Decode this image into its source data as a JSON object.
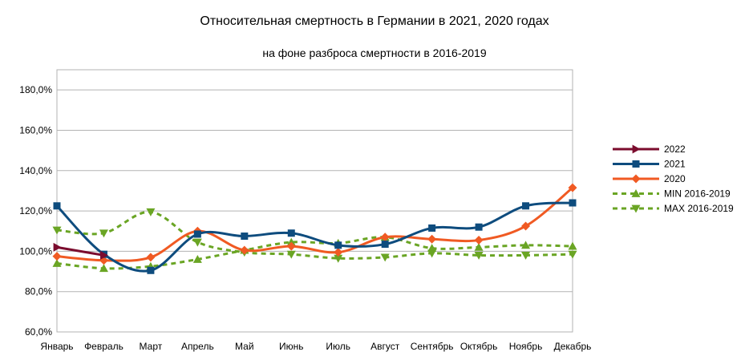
{
  "chart_data": {
    "type": "line",
    "title": "Относительная смертность в Германии в 2021, 2020 годах",
    "subtitle": "на фоне разброса смертности в 2016-2019",
    "categories": [
      "Январь",
      "Февраль",
      "Март",
      "Апрель",
      "Май",
      "Июнь",
      "Июль",
      "Август",
      "Сентябрь",
      "Октябрь",
      "Ноябрь",
      "Декабрь"
    ],
    "ylim": [
      60,
      190
    ],
    "yticks": [
      60,
      80,
      100,
      120,
      140,
      160,
      180
    ],
    "ytick_labels": [
      "60,0%",
      "80,0%",
      "100,0%",
      "120,0%",
      "140,0%",
      "160,0%",
      "180,0%"
    ],
    "grid": true,
    "legend_position": "right",
    "series": [
      {
        "name": "2022",
        "color": "#7b0c2e",
        "marker": "arrow-right",
        "dashed": false,
        "values": [
          102,
          98,
          null,
          null,
          null,
          null,
          null,
          null,
          null,
          null,
          null,
          null
        ]
      },
      {
        "name": "2021",
        "color": "#0e4c7e",
        "marker": "square",
        "dashed": false,
        "values": [
          122.5,
          98.5,
          90.5,
          108.5,
          107.5,
          109,
          103,
          103.5,
          111.5,
          112,
          122.5,
          124
        ]
      },
      {
        "name": "2020",
        "color": "#f05a23",
        "marker": "diamond",
        "dashed": false,
        "values": [
          97.5,
          95.5,
          97,
          110,
          100.5,
          102.5,
          99.5,
          107,
          106,
          105.5,
          112.5,
          131.5
        ]
      },
      {
        "name": "MIN 2016-2019",
        "color": "#6aa524",
        "marker": "triangle-up",
        "dashed": true,
        "values": [
          94,
          91.5,
          92.5,
          96,
          100.5,
          104.5,
          104,
          107,
          101.5,
          102,
          103,
          102.5
        ]
      },
      {
        "name": "MAX 2016-2019",
        "color": "#6aa524",
        "marker": "triangle-down",
        "dashed": true,
        "values": [
          110.5,
          109,
          119.5,
          104.5,
          99.5,
          98.5,
          96.5,
          97,
          99,
          98,
          98,
          98.5
        ]
      }
    ]
  }
}
